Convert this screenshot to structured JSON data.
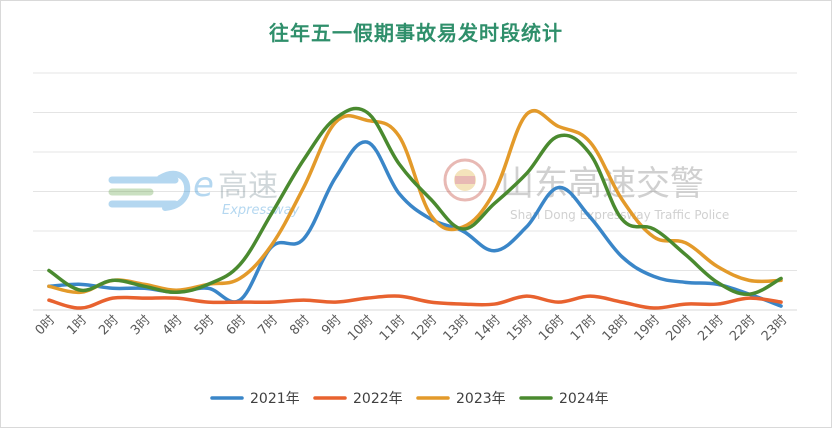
{
  "chart_data": {
    "type": "line",
    "title": "往年五一假期事故易发时段统计",
    "xlabel": "",
    "ylabel": "",
    "categories": [
      "0时",
      "1时",
      "2时",
      "3时",
      "4时",
      "5时",
      "6时",
      "7时",
      "8时",
      "9时",
      "10时",
      "11时",
      "12时",
      "13时",
      "14时",
      "15时",
      "16时",
      "17时",
      "18时",
      "19时",
      "20时",
      "21时",
      "22时",
      "23时"
    ],
    "ylim": [
      0,
      120
    ],
    "grid": true,
    "legend_position": "bottom",
    "series": [
      {
        "name": "2021年",
        "color": "#3a86c8",
        "values": [
          12,
          13,
          11,
          11,
          9,
          11,
          5,
          32,
          36,
          67,
          85,
          59,
          46,
          40,
          30,
          42,
          62,
          47,
          27,
          17,
          14,
          13,
          8,
          2
        ]
      },
      {
        "name": "2022年",
        "color": "#e8622f",
        "values": [
          5,
          1,
          6,
          6,
          6,
          4,
          4,
          4,
          5,
          4,
          6,
          7,
          4,
          3,
          3,
          7,
          4,
          7,
          4,
          1,
          3,
          3,
          6,
          4
        ]
      },
      {
        "name": "2023年",
        "color": "#e39a2a",
        "values": [
          12,
          9,
          15,
          13,
          10,
          13,
          16,
          33,
          62,
          95,
          96,
          88,
          48,
          42,
          60,
          99,
          93,
          85,
          56,
          37,
          34,
          22,
          15,
          15
        ]
      },
      {
        "name": "2024年",
        "color": "#4a8a2f",
        "values": [
          20,
          10,
          15,
          12,
          9,
          13,
          23,
          49,
          76,
          97,
          100,
          74,
          56,
          41,
          54,
          69,
          88,
          79,
          46,
          41,
          28,
          14,
          8,
          16
        ]
      }
    ]
  },
  "watermark": {
    "left_brand": "高速",
    "left_sub": "Expressway",
    "right_brand": "山东高速交警",
    "right_sub": "Shan Dong Expressway Traffic Police"
  }
}
